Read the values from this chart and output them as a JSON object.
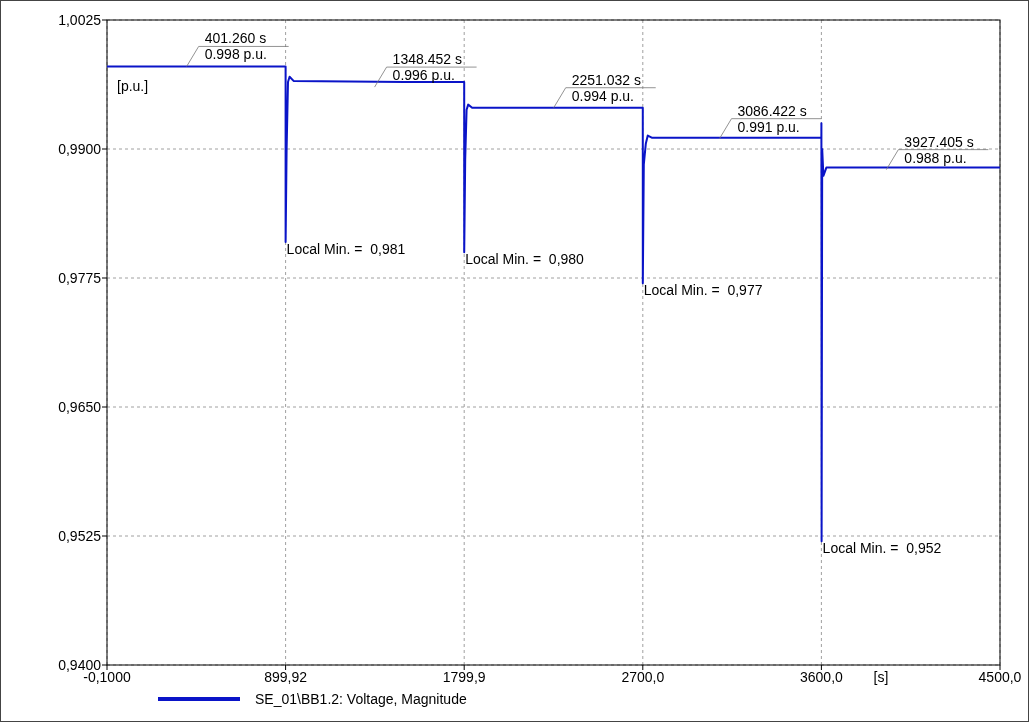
{
  "chart_data": {
    "type": "line",
    "xlabel": "[s]",
    "ylabel": "[p.u.]",
    "xlim": [
      -0.1,
      4500
    ],
    "ylim": [
      0.94,
      1.0025
    ],
    "xticks": [
      {
        "value": -0.1,
        "label": "-0,1000"
      },
      {
        "value": 899.92,
        "label": "899,92"
      },
      {
        "value": 1799.9,
        "label": "1799,9"
      },
      {
        "value": 2700,
        "label": "2700,0"
      },
      {
        "value": 3600,
        "label": "3600,0"
      },
      {
        "value": 4500,
        "label": "4500,0"
      }
    ],
    "yticks": [
      {
        "value": 0.94,
        "label": "0,9400"
      },
      {
        "value": 0.9525,
        "label": "0,9525"
      },
      {
        "value": 0.965,
        "label": "0,9650"
      },
      {
        "value": 0.9775,
        "label": "0,9775"
      },
      {
        "value": 0.99,
        "label": "0,9900"
      },
      {
        "value": 1.0025,
        "label": "1,0025"
      }
    ],
    "grid": true,
    "legend": "bottom left",
    "line_style": "solid",
    "marker": "none",
    "series": [
      {
        "name": "SE_01\\BB1.2: Voltage, Magnitude",
        "color": "#0a14c8",
        "x": [
          -0.1,
          899.9,
          900,
          905,
          912,
          920,
          940,
          1500,
          1799.9,
          1800,
          1805,
          1812,
          1820,
          1840,
          2699.9,
          2700,
          2705,
          2715,
          2725,
          2745,
          3599.9,
          3600,
          3601,
          3604,
          3610,
          3625,
          4500
        ],
        "values": [
          0.998,
          0.998,
          0.981,
          0.99,
          0.9965,
          0.997,
          0.9966,
          0.9965,
          0.9965,
          0.98,
          0.989,
          0.9938,
          0.9943,
          0.994,
          0.994,
          0.977,
          0.9885,
          0.9905,
          0.9913,
          0.9911,
          0.9911,
          0.9925,
          0.952,
          0.99,
          0.9874,
          0.9882,
          0.9882
        ]
      }
    ],
    "annotations": [
      {
        "text": "401.260 s\n0.998 p.u.",
        "x": 401.26,
        "y": 0.998
      },
      {
        "text": "1348.452 s\n0.996 p.u.",
        "x": 1348.452,
        "y": 0.996
      },
      {
        "text": "2251.032 s\n0.994 p.u.",
        "x": 2251.032,
        "y": 0.994
      },
      {
        "text": "3086.422 s\n0.991 p.u.",
        "x": 3086.422,
        "y": 0.991
      },
      {
        "text": "3927.405 s\n0.988 p.u.",
        "x": 3927.405,
        "y": 0.988
      },
      {
        "text": "Local Min. =  0,981",
        "x": 900,
        "y": 0.981
      },
      {
        "text": "Local Min. =  0,980",
        "x": 1800,
        "y": 0.98
      },
      {
        "text": "Local Min. =  0,977",
        "x": 2700,
        "y": 0.977
      },
      {
        "text": "Local Min. =  0,952",
        "x": 3601,
        "y": 0.952
      }
    ]
  }
}
